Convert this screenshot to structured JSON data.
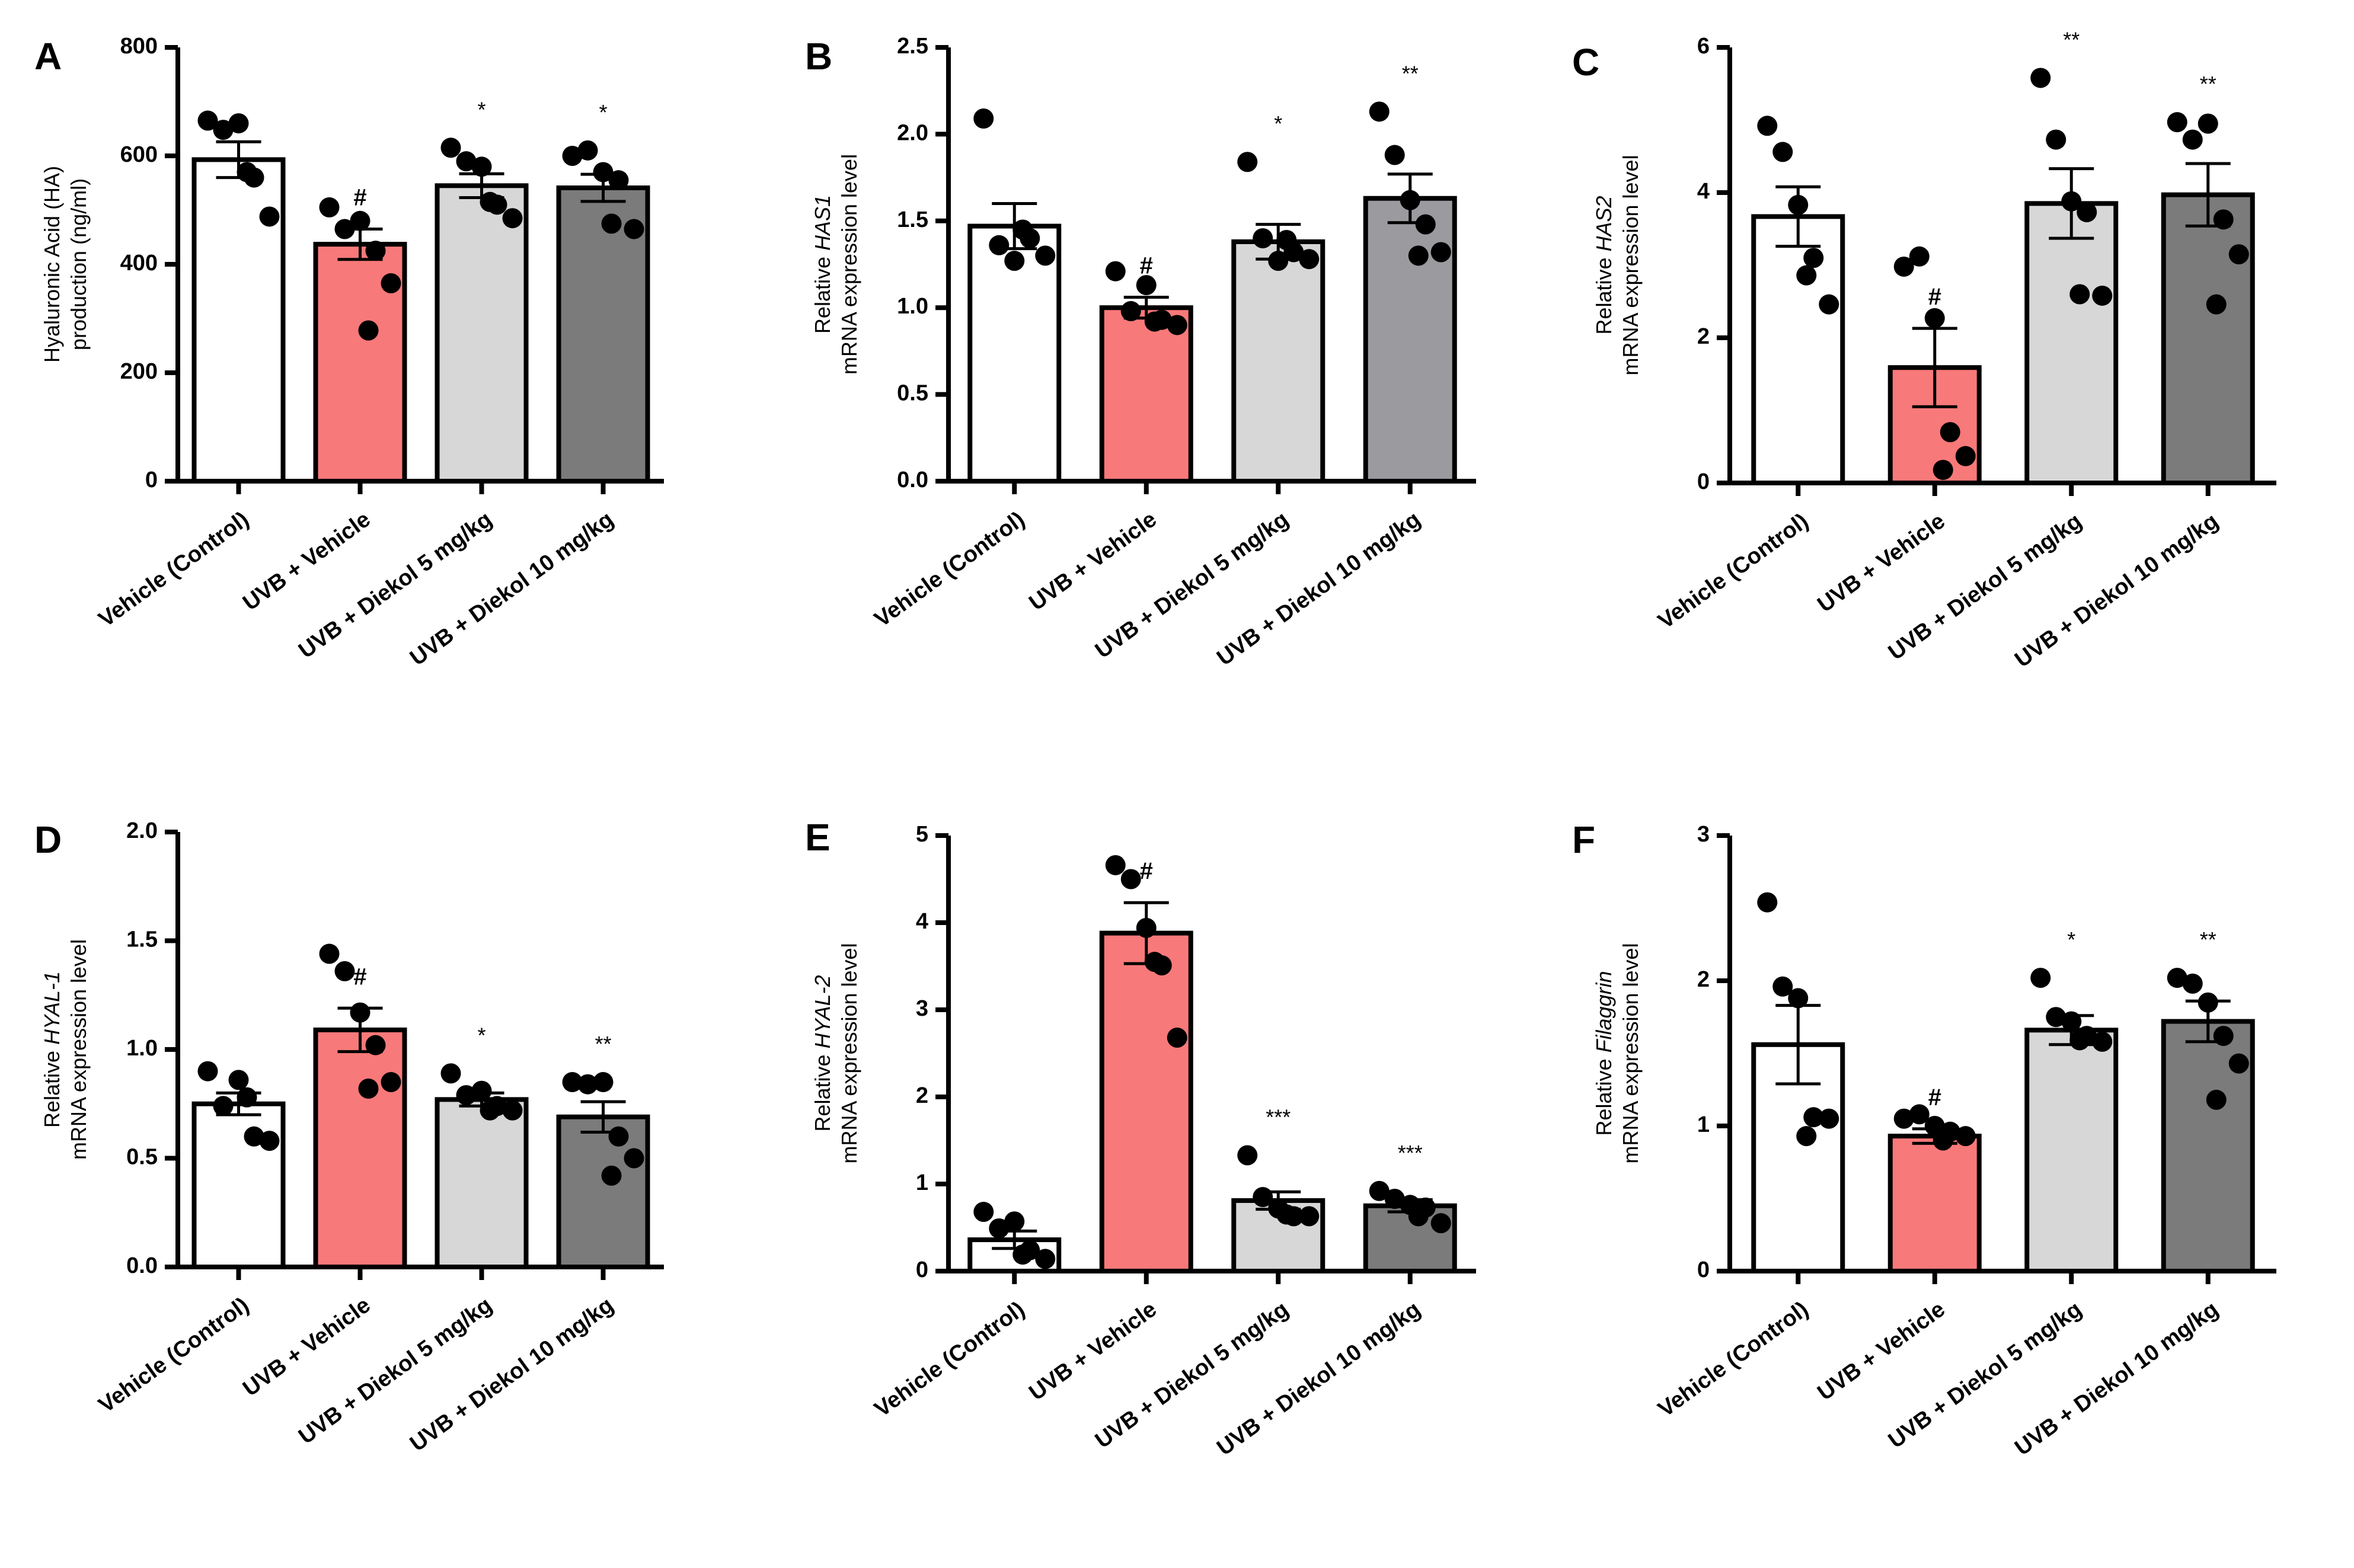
{
  "figure": {
    "title": ""
  },
  "chart_data": [
    {
      "panel": "A",
      "type": "bar",
      "categories": [
        "Vehicle (Control)",
        "UVB + Vehicle",
        "UVB + Diekol 5 mg/kg",
        "UVB + Diekol 10 mg/kg"
      ],
      "ylabel_prefix": "",
      "ylabel_gene": "",
      "ylabel_suffix": "Hyaluronic Acid (HA)",
      "ylabel_line2": "production (ng/ml)",
      "ylim": [
        0,
        800
      ],
      "yticks": [
        0,
        200,
        400,
        600,
        800
      ],
      "tick_decimals": 0,
      "series": [
        {
          "name": "mean",
          "values": [
            593,
            437,
            545,
            541
          ]
        }
      ],
      "sem": [
        33,
        28,
        22,
        25
      ],
      "points": [
        [
          665,
          648,
          660,
          560,
          488,
          570
        ],
        [
          505,
          465,
          480,
          425,
          365,
          278
        ],
        [
          615,
          590,
          580,
          510,
          485,
          515
        ],
        [
          600,
          610,
          570,
          555,
          465,
          475
        ]
      ],
      "colors": [
        "#ffffff",
        "#f87979",
        "#d7d7d7",
        "#7b7b7b"
      ],
      "significance": [
        "",
        "#",
        "*",
        "*"
      ]
    },
    {
      "panel": "B",
      "type": "bar",
      "categories": [
        "Vehicle (Control)",
        "UVB + Vehicle",
        "UVB + Diekol 5 mg/kg",
        "UVB + Diekol 10 mg/kg"
      ],
      "ylabel_prefix": "Relative ",
      "ylabel_gene": "HAS1",
      "ylabel_suffix": "",
      "ylabel_line2": "mRNA  expression level",
      "ylim": [
        0,
        2.5
      ],
      "yticks": [
        0,
        0.5,
        1.0,
        1.5,
        2.0,
        2.5
      ],
      "tick_decimals": 1,
      "series": [
        {
          "name": "mean",
          "values": [
            1.47,
            1.0,
            1.38,
            1.63
          ]
        }
      ],
      "sem": [
        0.13,
        0.06,
        0.1,
        0.14
      ],
      "points": [
        [
          2.09,
          1.36,
          1.27,
          1.4,
          1.3,
          1.45
        ],
        [
          1.21,
          0.98,
          1.13,
          0.93,
          0.9,
          0.92
        ],
        [
          1.84,
          1.4,
          1.27,
          1.32,
          1.28,
          1.39
        ],
        [
          2.13,
          1.88,
          1.62,
          1.48,
          1.32,
          1.3
        ]
      ],
      "colors": [
        "#ffffff",
        "#f87979",
        "#d7d7d7",
        "#9a9a9f"
      ],
      "significance": [
        "",
        "#",
        "*",
        "**"
      ]
    },
    {
      "panel": "C",
      "type": "bar",
      "categories": [
        "Vehicle (Control)",
        "UVB + Vehicle",
        "UVB + Diekol 5 mg/kg",
        "UVB + Diekol 10 mg/kg"
      ],
      "ylabel_prefix": "Relative ",
      "ylabel_gene": "HAS2",
      "ylabel_suffix": "",
      "ylabel_line2": "mRNA  expression level",
      "ylim": [
        0,
        6
      ],
      "yticks": [
        0,
        2,
        4,
        6
      ],
      "tick_decimals": 0,
      "series": [
        {
          "name": "mean",
          "values": [
            3.67,
            1.59,
            3.85,
            3.97
          ]
        }
      ],
      "sem": [
        0.41,
        0.54,
        0.48,
        0.43
      ],
      "points": [
        [
          4.92,
          4.56,
          3.83,
          3.1,
          2.46,
          2.86
        ],
        [
          2.98,
          3.12,
          2.27,
          0.7,
          0.37,
          0.18
        ],
        [
          5.58,
          4.73,
          3.88,
          3.73,
          2.58,
          2.6
        ],
        [
          4.97,
          4.73,
          4.95,
          3.63,
          3.15,
          2.46
        ]
      ],
      "colors": [
        "#ffffff",
        "#f87979",
        "#d7d7d7",
        "#7b7b7b"
      ],
      "significance": [
        "",
        "#",
        "**",
        "**"
      ]
    },
    {
      "panel": "D",
      "type": "bar",
      "categories": [
        "Vehicle (Control)",
        "UVB + Vehicle",
        "UVB + Diekol 5 mg/kg",
        "UVB + Diekol 10 mg/kg"
      ],
      "ylabel_prefix": "Relative ",
      "ylabel_gene": "HYAL-1",
      "ylabel_suffix": "",
      "ylabel_line2": "mRNA expression level",
      "ylim": [
        0,
        2.0
      ],
      "yticks": [
        0,
        0.5,
        1.0,
        1.5,
        2.0
      ],
      "tick_decimals": 1,
      "series": [
        {
          "name": "mean",
          "values": [
            0.75,
            1.09,
            0.77,
            0.69
          ]
        }
      ],
      "sem": [
        0.05,
        0.1,
        0.03,
        0.07
      ],
      "points": [
        [
          0.9,
          0.74,
          0.86,
          0.6,
          0.58,
          0.78
        ],
        [
          1.44,
          1.36,
          1.17,
          1.02,
          0.85,
          0.82
        ],
        [
          0.89,
          0.79,
          0.81,
          0.74,
          0.72,
          0.72
        ],
        [
          0.85,
          0.84,
          0.85,
          0.6,
          0.5,
          0.42
        ]
      ],
      "colors": [
        "#ffffff",
        "#f87979",
        "#d7d7d7",
        "#7b7b7b"
      ],
      "significance": [
        "",
        "#",
        "*",
        "**"
      ]
    },
    {
      "panel": "E",
      "type": "bar",
      "categories": [
        "Vehicle (Control)",
        "UVB + Vehicle",
        "UVB + Diekol 5 mg/kg",
        "UVB + Diekol 10 mg/kg"
      ],
      "ylabel_prefix": "Relative ",
      "ylabel_gene": "HYAL-2",
      "ylabel_suffix": "",
      "ylabel_line2": "mRNA  expression level",
      "ylim": [
        0,
        5
      ],
      "yticks": [
        0,
        1,
        2,
        3,
        4,
        5
      ],
      "tick_decimals": 0,
      "series": [
        {
          "name": "mean",
          "values": [
            0.36,
            3.88,
            0.81,
            0.75
          ]
        }
      ],
      "sem": [
        0.1,
        0.35,
        0.1,
        0.07
      ],
      "points": [
        [
          0.68,
          0.49,
          0.57,
          0.24,
          0.14,
          0.19
        ],
        [
          4.66,
          4.5,
          3.94,
          3.51,
          2.68,
          3.55
        ],
        [
          1.33,
          0.85,
          0.72,
          0.63,
          0.63,
          0.65
        ],
        [
          0.92,
          0.83,
          0.76,
          0.73,
          0.55,
          0.63
        ]
      ],
      "colors": [
        "#ffffff",
        "#f87979",
        "#d7d7d7",
        "#7b7b7b"
      ],
      "significance": [
        "",
        "#",
        "***",
        "***"
      ]
    },
    {
      "panel": "F",
      "type": "bar",
      "categories": [
        "Vehicle (Control)",
        "UVB + Vehicle",
        "UVB + Diekol 5 mg/kg",
        "UVB + Diekol 10 mg/kg"
      ],
      "ylabel_prefix": "Relative ",
      "ylabel_gene": "Filaggrin",
      "ylabel_suffix": "",
      "ylabel_line2": "mRNA  expression level",
      "ylim": [
        0,
        3
      ],
      "yticks": [
        0,
        1,
        2,
        3
      ],
      "tick_decimals": 0,
      "series": [
        {
          "name": "mean",
          "values": [
            1.56,
            0.93,
            1.66,
            1.72
          ]
        }
      ],
      "sem": [
        0.27,
        0.05,
        0.1,
        0.14
      ],
      "points": [
        [
          2.54,
          1.96,
          1.88,
          1.06,
          1.05,
          0.93
        ],
        [
          1.05,
          1.08,
          1.0,
          0.96,
          0.93,
          0.9
        ],
        [
          2.02,
          1.75,
          1.72,
          1.62,
          1.58,
          1.59
        ],
        [
          2.02,
          1.98,
          1.85,
          1.62,
          1.43,
          1.18
        ]
      ],
      "colors": [
        "#ffffff",
        "#f87979",
        "#d7d7d7",
        "#7b7b7b"
      ],
      "significance": [
        "",
        "#",
        "*",
        "**"
      ]
    }
  ]
}
